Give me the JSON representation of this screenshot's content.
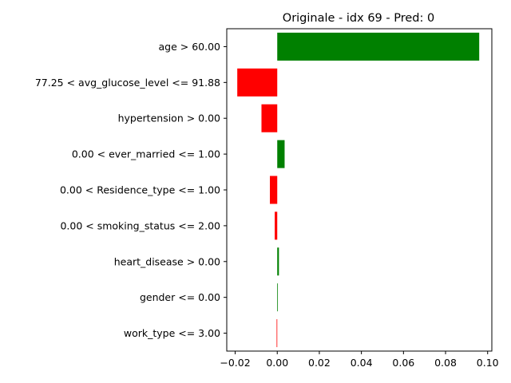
{
  "chart_data": {
    "type": "bar",
    "orientation": "horizontal",
    "title": "Originale - idx 69 - Pred: 0",
    "xlabel": "",
    "ylabel": "",
    "categories": [
      "age > 60.00",
      "77.25 < avg_glucose_level <= 91.88",
      "hypertension > 0.00",
      "0.00 < ever_married <= 1.00",
      "0.00 < Residence_type <= 1.00",
      "0.00 < smoking_status <= 2.00",
      "heart_disease > 0.00",
      "gender <= 0.00",
      "work_type <= 3.00"
    ],
    "values": [
      0.096,
      -0.019,
      -0.0075,
      0.0035,
      -0.0035,
      -0.0012,
      0.0008,
      0.0003,
      -0.0003
    ],
    "xlim": [
      -0.024,
      0.102
    ],
    "xticks": [
      -0.02,
      0.0,
      0.02,
      0.04,
      0.06,
      0.08,
      0.1
    ],
    "xtick_labels": [
      "−0.02",
      "0.00",
      "0.02",
      "0.04",
      "0.06",
      "0.08",
      "0.10"
    ],
    "grid": false,
    "colors": {
      "positive": "#008000",
      "negative": "#ff0000"
    }
  }
}
